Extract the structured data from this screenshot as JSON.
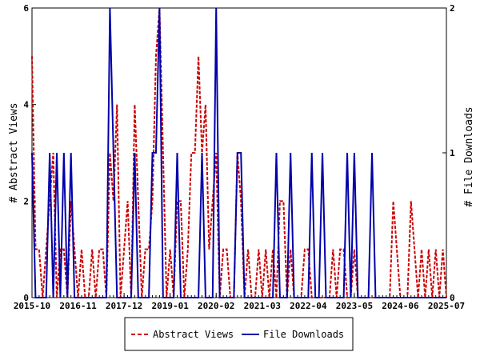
{
  "chart_data": {
    "type": "line",
    "title": "",
    "ylabel_left": "# Abstract Views",
    "ylabel_right": "# File Downloads",
    "ylim_left": [
      0,
      6
    ],
    "ylim_right": [
      0,
      2
    ],
    "yticks_left": [
      "0",
      "2",
      "4",
      "6"
    ],
    "yticks_right": [
      "0",
      "1",
      "2"
    ],
    "x_tick_labels": [
      "2015-10",
      "2016-11",
      "2017-12",
      "2019-01",
      "2020-02",
      "2021-03",
      "2022-04",
      "2023-05",
      "2024-06",
      "2025-07"
    ],
    "x_unit": "month",
    "grid": false,
    "legend_position": "bottom",
    "series": [
      {
        "name": "Abstract Views",
        "axis": "left",
        "color": "#cc0000",
        "style": "dashed",
        "points": [
          [
            "2015-10",
            5
          ],
          [
            "2015-11",
            1
          ],
          [
            "2015-12",
            1
          ],
          [
            "2016-01",
            0
          ],
          [
            "2016-02",
            1
          ],
          [
            "2016-03",
            2
          ],
          [
            "2016-04",
            3
          ],
          [
            "2016-05",
            0
          ],
          [
            "2016-06",
            1
          ],
          [
            "2016-07",
            1
          ],
          [
            "2016-08",
            0
          ],
          [
            "2016-09",
            2
          ],
          [
            "2016-10",
            1
          ],
          [
            "2016-11",
            0
          ],
          [
            "2016-12",
            1
          ],
          [
            "2017-01",
            0
          ],
          [
            "2017-02",
            0
          ],
          [
            "2017-03",
            1
          ],
          [
            "2017-04",
            0
          ],
          [
            "2017-05",
            1
          ],
          [
            "2017-06",
            1
          ],
          [
            "2017-07",
            0
          ],
          [
            "2017-08",
            3
          ],
          [
            "2017-09",
            2
          ],
          [
            "2017-10",
            4
          ],
          [
            "2017-11",
            0
          ],
          [
            "2017-12",
            1
          ],
          [
            "2018-01",
            2
          ],
          [
            "2018-02",
            0
          ],
          [
            "2018-03",
            4
          ],
          [
            "2018-04",
            2
          ],
          [
            "2018-05",
            0
          ],
          [
            "2018-06",
            1
          ],
          [
            "2018-07",
            1
          ],
          [
            "2018-08",
            2
          ],
          [
            "2018-09",
            5
          ],
          [
            "2018-10",
            6
          ],
          [
            "2018-11",
            3
          ],
          [
            "2018-12",
            0
          ],
          [
            "2019-01",
            1
          ],
          [
            "2019-02",
            0
          ],
          [
            "2019-03",
            2
          ],
          [
            "2019-04",
            2
          ],
          [
            "2019-05",
            0
          ],
          [
            "2019-06",
            1
          ],
          [
            "2019-07",
            3
          ],
          [
            "2019-08",
            3
          ],
          [
            "2019-09",
            5
          ],
          [
            "2019-10",
            3
          ],
          [
            "2019-11",
            4
          ],
          [
            "2019-12",
            1
          ],
          [
            "2020-01",
            2
          ],
          [
            "2020-02",
            3
          ],
          [
            "2020-03",
            0
          ],
          [
            "2020-04",
            1
          ],
          [
            "2020-05",
            1
          ],
          [
            "2020-06",
            0
          ],
          [
            "2020-07",
            0
          ],
          [
            "2020-08",
            3
          ],
          [
            "2020-09",
            2
          ],
          [
            "2020-10",
            0
          ],
          [
            "2020-11",
            1
          ],
          [
            "2020-12",
            0
          ],
          [
            "2021-01",
            0
          ],
          [
            "2021-02",
            1
          ],
          [
            "2021-03",
            0
          ],
          [
            "2021-04",
            1
          ],
          [
            "2021-05",
            0
          ],
          [
            "2021-06",
            1
          ],
          [
            "2021-07",
            0
          ],
          [
            "2021-08",
            2
          ],
          [
            "2021-09",
            2
          ],
          [
            "2021-10",
            0
          ],
          [
            "2021-11",
            1
          ],
          [
            "2021-12",
            0
          ],
          [
            "2022-01",
            0
          ],
          [
            "2022-02",
            0
          ],
          [
            "2022-03",
            1
          ],
          [
            "2022-04",
            1
          ],
          [
            "2022-05",
            0
          ],
          [
            "2022-06",
            0
          ],
          [
            "2022-07",
            0
          ],
          [
            "2022-08",
            0
          ],
          [
            "2022-09",
            0
          ],
          [
            "2022-10",
            0
          ],
          [
            "2022-11",
            1
          ],
          [
            "2022-12",
            0
          ],
          [
            "2023-01",
            1
          ],
          [
            "2023-02",
            1
          ],
          [
            "2023-03",
            0
          ],
          [
            "2023-04",
            0
          ],
          [
            "2023-05",
            1
          ],
          [
            "2023-06",
            0
          ],
          [
            "2023-07",
            0
          ],
          [
            "2023-08",
            0
          ],
          [
            "2023-09",
            0
          ],
          [
            "2023-10",
            0
          ],
          [
            "2023-11",
            0
          ],
          [
            "2023-12",
            0
          ],
          [
            "2024-01",
            0
          ],
          [
            "2024-02",
            0
          ],
          [
            "2024-03",
            0
          ],
          [
            "2024-04",
            2
          ],
          [
            "2024-05",
            1
          ],
          [
            "2024-06",
            0
          ],
          [
            "2024-07",
            0
          ],
          [
            "2024-08",
            0
          ],
          [
            "2024-09",
            2
          ],
          [
            "2024-10",
            1
          ],
          [
            "2024-11",
            0
          ],
          [
            "2024-12",
            1
          ],
          [
            "2025-01",
            0
          ],
          [
            "2025-02",
            1
          ],
          [
            "2025-03",
            0
          ],
          [
            "2025-04",
            1
          ],
          [
            "2025-05",
            0
          ],
          [
            "2025-06",
            1
          ],
          [
            "2025-07",
            0
          ]
        ]
      },
      {
        "name": "File Downloads",
        "axis": "right",
        "color": "#0000aa",
        "style": "solid",
        "points": [
          [
            "2015-10",
            1
          ],
          [
            "2015-11",
            0
          ],
          [
            "2015-12",
            0
          ],
          [
            "2016-01",
            0
          ],
          [
            "2016-02",
            0
          ],
          [
            "2016-03",
            1
          ],
          [
            "2016-04",
            0
          ],
          [
            "2016-05",
            1
          ],
          [
            "2016-06",
            0
          ],
          [
            "2016-07",
            1
          ],
          [
            "2016-08",
            0
          ],
          [
            "2016-09",
            1
          ],
          [
            "2016-10",
            0
          ],
          [
            "2016-11",
            0
          ],
          [
            "2016-12",
            0
          ],
          [
            "2017-01",
            0
          ],
          [
            "2017-02",
            0
          ],
          [
            "2017-03",
            0
          ],
          [
            "2017-04",
            0
          ],
          [
            "2017-05",
            0
          ],
          [
            "2017-06",
            0
          ],
          [
            "2017-07",
            0
          ],
          [
            "2017-08",
            2
          ],
          [
            "2017-09",
            1
          ],
          [
            "2017-10",
            0
          ],
          [
            "2017-11",
            0
          ],
          [
            "2017-12",
            0
          ],
          [
            "2018-01",
            0
          ],
          [
            "2018-02",
            0
          ],
          [
            "2018-03",
            1
          ],
          [
            "2018-04",
            0
          ],
          [
            "2018-05",
            0
          ],
          [
            "2018-06",
            0
          ],
          [
            "2018-07",
            0
          ],
          [
            "2018-08",
            1
          ],
          [
            "2018-09",
            1
          ],
          [
            "2018-10",
            2
          ],
          [
            "2018-11",
            0
          ],
          [
            "2018-12",
            0
          ],
          [
            "2019-01",
            0
          ],
          [
            "2019-02",
            0
          ],
          [
            "2019-03",
            1
          ],
          [
            "2019-04",
            0
          ],
          [
            "2019-05",
            0
          ],
          [
            "2019-06",
            0
          ],
          [
            "2019-07",
            0
          ],
          [
            "2019-08",
            0
          ],
          [
            "2019-09",
            0
          ],
          [
            "2019-10",
            1
          ],
          [
            "2019-11",
            0
          ],
          [
            "2019-12",
            0
          ],
          [
            "2020-01",
            0
          ],
          [
            "2020-02",
            2
          ],
          [
            "2020-03",
            0
          ],
          [
            "2020-04",
            0
          ],
          [
            "2020-05",
            0
          ],
          [
            "2020-06",
            0
          ],
          [
            "2020-07",
            0
          ],
          [
            "2020-08",
            1
          ],
          [
            "2020-09",
            1
          ],
          [
            "2020-10",
            0
          ],
          [
            "2020-11",
            0
          ],
          [
            "2020-12",
            0
          ],
          [
            "2021-01",
            0
          ],
          [
            "2021-02",
            0
          ],
          [
            "2021-03",
            0
          ],
          [
            "2021-04",
            0
          ],
          [
            "2021-05",
            0
          ],
          [
            "2021-06",
            0
          ],
          [
            "2021-07",
            1
          ],
          [
            "2021-08",
            0
          ],
          [
            "2021-09",
            0
          ],
          [
            "2021-10",
            0
          ],
          [
            "2021-11",
            1
          ],
          [
            "2021-12",
            0
          ],
          [
            "2022-01",
            0
          ],
          [
            "2022-02",
            0
          ],
          [
            "2022-03",
            0
          ],
          [
            "2022-04",
            0
          ],
          [
            "2022-05",
            1
          ],
          [
            "2022-06",
            0
          ],
          [
            "2022-07",
            0
          ],
          [
            "2022-08",
            1
          ],
          [
            "2022-09",
            0
          ],
          [
            "2022-10",
            0
          ],
          [
            "2022-11",
            0
          ],
          [
            "2022-12",
            0
          ],
          [
            "2023-01",
            0
          ],
          [
            "2023-02",
            0
          ],
          [
            "2023-03",
            1
          ],
          [
            "2023-04",
            0
          ],
          [
            "2023-05",
            1
          ],
          [
            "2023-06",
            0
          ],
          [
            "2023-07",
            0
          ],
          [
            "2023-08",
            0
          ],
          [
            "2023-09",
            0
          ],
          [
            "2023-10",
            1
          ],
          [
            "2023-11",
            0
          ],
          [
            "2023-12",
            0
          ],
          [
            "2024-01",
            0
          ],
          [
            "2024-02",
            0
          ],
          [
            "2024-03",
            0
          ],
          [
            "2024-04",
            0
          ],
          [
            "2024-05",
            0
          ],
          [
            "2024-06",
            0
          ],
          [
            "2024-07",
            0
          ],
          [
            "2024-08",
            0
          ],
          [
            "2024-09",
            0
          ],
          [
            "2024-10",
            0
          ],
          [
            "2024-11",
            0
          ],
          [
            "2024-12",
            0
          ],
          [
            "2025-01",
            0
          ],
          [
            "2025-02",
            0
          ],
          [
            "2025-03",
            0
          ],
          [
            "2025-04",
            0
          ],
          [
            "2025-05",
            0
          ],
          [
            "2025-06",
            0
          ],
          [
            "2025-07",
            0
          ]
        ]
      }
    ]
  },
  "legend": {
    "abstract_label": "Abstract Views",
    "downloads_label": "File Downloads"
  }
}
